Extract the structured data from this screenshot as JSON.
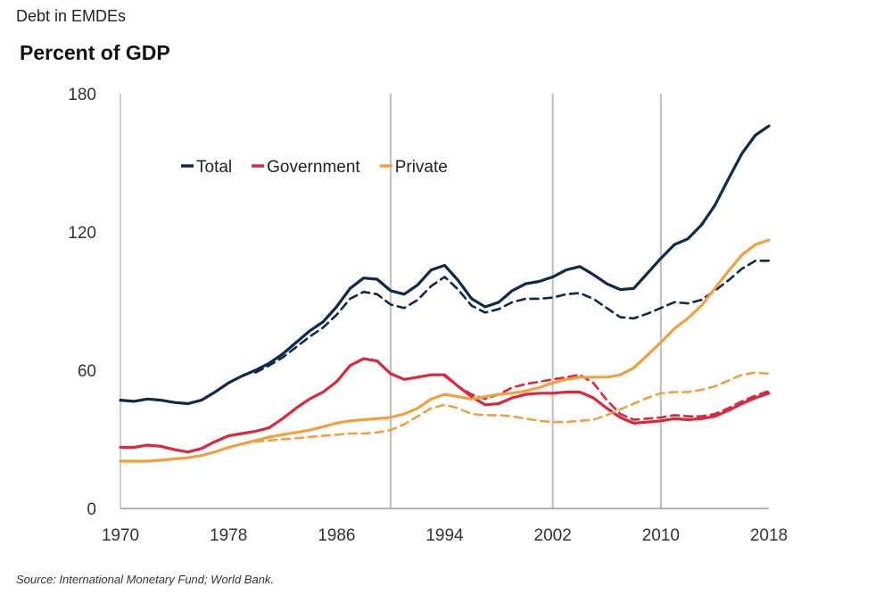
{
  "header": {
    "supertitle": "Debt in EMDEs",
    "title": "Percent of GDP"
  },
  "footer": {
    "source": "Source: International Monetary Fund; World Bank."
  },
  "chart_data": {
    "type": "line",
    "xlim": [
      1970,
      2018
    ],
    "ylim": [
      0,
      180
    ],
    "x_ticks": [
      1970,
      1978,
      1986,
      1994,
      2002,
      2010,
      2018
    ],
    "y_ticks": [
      0,
      60,
      120,
      180
    ],
    "vertical_reference_lines": [
      1990,
      2002,
      2010
    ],
    "legend_placement": "top-left",
    "series": [
      {
        "name": "Total",
        "color": "#0d2a4c",
        "dash": false,
        "points": [
          [
            1970,
            47
          ],
          [
            1971,
            46.5
          ],
          [
            1972,
            47.5
          ],
          [
            1973,
            47
          ],
          [
            1974,
            46
          ],
          [
            1975,
            45.5
          ],
          [
            1976,
            47
          ],
          [
            1977,
            50.5
          ],
          [
            1978,
            54.5
          ],
          [
            1979,
            57.5
          ],
          [
            1980,
            60
          ],
          [
            1981,
            63
          ],
          [
            1982,
            67
          ],
          [
            1983,
            72
          ],
          [
            1984,
            77
          ],
          [
            1985,
            81
          ],
          [
            1986,
            87.5
          ],
          [
            1987,
            95.5
          ],
          [
            1988,
            100
          ],
          [
            1989,
            99.5
          ],
          [
            1990,
            94.5
          ],
          [
            1991,
            93
          ],
          [
            1992,
            97
          ],
          [
            1993,
            103.5
          ],
          [
            1994,
            105.5
          ],
          [
            1995,
            99
          ],
          [
            1996,
            91
          ],
          [
            1997,
            87.5
          ],
          [
            1998,
            89.5
          ],
          [
            1999,
            94.5
          ],
          [
            2000,
            97.5
          ],
          [
            2001,
            98.5
          ],
          [
            2002,
            100.5
          ],
          [
            2003,
            103.5
          ],
          [
            2004,
            105
          ],
          [
            2005,
            101.5
          ],
          [
            2006,
            97.5
          ],
          [
            2007,
            95
          ],
          [
            2008,
            95.5
          ],
          [
            2009,
            102
          ],
          [
            2010,
            108.5
          ],
          [
            2011,
            114.5
          ],
          [
            2012,
            117
          ],
          [
            2013,
            123
          ],
          [
            2014,
            131.5
          ],
          [
            2015,
            143
          ],
          [
            2016,
            154
          ],
          [
            2017,
            162
          ],
          [
            2018,
            166
          ]
        ]
      },
      {
        "name": "",
        "color": "#0d2a4c",
        "dash": true,
        "points": [
          [
            1980,
            59
          ],
          [
            1981,
            62
          ],
          [
            1982,
            65.5
          ],
          [
            1983,
            70
          ],
          [
            1984,
            74.5
          ],
          [
            1985,
            78.5
          ],
          [
            1986,
            84
          ],
          [
            1987,
            91
          ],
          [
            1988,
            94
          ],
          [
            1989,
            93
          ],
          [
            1990,
            88.5
          ],
          [
            1991,
            87
          ],
          [
            1992,
            90.5
          ],
          [
            1993,
            96.5
          ],
          [
            1994,
            100.5
          ],
          [
            1995,
            95
          ],
          [
            1996,
            88
          ],
          [
            1997,
            85
          ],
          [
            1998,
            86.5
          ],
          [
            1999,
            89.5
          ],
          [
            2000,
            91
          ],
          [
            2001,
            91
          ],
          [
            2002,
            91.5
          ],
          [
            2003,
            93
          ],
          [
            2004,
            93.5
          ],
          [
            2005,
            91
          ],
          [
            2006,
            87
          ],
          [
            2007,
            83
          ],
          [
            2008,
            82.5
          ],
          [
            2009,
            84.5
          ],
          [
            2010,
            87
          ],
          [
            2011,
            89.5
          ],
          [
            2012,
            89
          ],
          [
            2013,
            90.5
          ],
          [
            2014,
            94.5
          ],
          [
            2015,
            99
          ],
          [
            2016,
            104
          ],
          [
            2017,
            107.5
          ],
          [
            2018,
            107.5
          ]
        ]
      },
      {
        "name": "Government",
        "color": "#d8293f",
        "dash": false,
        "points": [
          [
            1970,
            26.5
          ],
          [
            1971,
            26.5
          ],
          [
            1972,
            27.5
          ],
          [
            1973,
            27
          ],
          [
            1974,
            25.5
          ],
          [
            1975,
            24.5
          ],
          [
            1976,
            26
          ],
          [
            1977,
            29
          ],
          [
            1978,
            31.5
          ],
          [
            1979,
            32.5
          ],
          [
            1980,
            33.5
          ],
          [
            1981,
            35
          ],
          [
            1982,
            39
          ],
          [
            1983,
            43.5
          ],
          [
            1984,
            47.5
          ],
          [
            1985,
            50.5
          ],
          [
            1986,
            55
          ],
          [
            1987,
            62
          ],
          [
            1988,
            65
          ],
          [
            1989,
            64
          ],
          [
            1990,
            58.5
          ],
          [
            1991,
            56
          ],
          [
            1992,
            57
          ],
          [
            1993,
            58
          ],
          [
            1994,
            58
          ],
          [
            1995,
            53
          ],
          [
            1996,
            48.5
          ],
          [
            1997,
            45
          ],
          [
            1998,
            45.5
          ],
          [
            1999,
            48
          ],
          [
            2000,
            49.5
          ],
          [
            2001,
            50
          ],
          [
            2002,
            50
          ],
          [
            2003,
            50.5
          ],
          [
            2004,
            50.5
          ],
          [
            2005,
            48
          ],
          [
            2006,
            43.5
          ],
          [
            2007,
            39.5
          ],
          [
            2008,
            37
          ],
          [
            2009,
            37.5
          ],
          [
            2010,
            38
          ],
          [
            2011,
            39
          ],
          [
            2012,
            38.5
          ],
          [
            2013,
            39
          ],
          [
            2014,
            40
          ],
          [
            2015,
            42.5
          ],
          [
            2016,
            45.5
          ],
          [
            2017,
            48
          ],
          [
            2018,
            50
          ]
        ]
      },
      {
        "name": "",
        "color": "#d8293f",
        "dash": true,
        "points": [
          [
            1994,
            57.5
          ],
          [
            1995,
            53
          ],
          [
            1996,
            49.5
          ],
          [
            1997,
            47.5
          ],
          [
            1998,
            49.5
          ],
          [
            1999,
            52.5
          ],
          [
            2000,
            54
          ],
          [
            2001,
            55
          ],
          [
            2002,
            56
          ],
          [
            2003,
            57
          ],
          [
            2004,
            58
          ],
          [
            2005,
            54.5
          ],
          [
            2006,
            47
          ],
          [
            2007,
            41
          ],
          [
            2008,
            38.5
          ],
          [
            2009,
            39
          ],
          [
            2010,
            39.5
          ],
          [
            2011,
            40.5
          ],
          [
            2012,
            40
          ],
          [
            2013,
            40
          ],
          [
            2014,
            41
          ],
          [
            2015,
            43.5
          ],
          [
            2016,
            46.5
          ],
          [
            2017,
            49
          ],
          [
            2018,
            51
          ]
        ]
      },
      {
        "name": "Private",
        "color": "#f0a040",
        "dash": false,
        "points": [
          [
            1970,
            20.5
          ],
          [
            1971,
            20.5
          ],
          [
            1972,
            20.5
          ],
          [
            1973,
            21
          ],
          [
            1974,
            21.5
          ],
          [
            1975,
            22
          ],
          [
            1976,
            23
          ],
          [
            1977,
            24.5
          ],
          [
            1978,
            26.5
          ],
          [
            1979,
            28
          ],
          [
            1980,
            29.5
          ],
          [
            1981,
            31
          ],
          [
            1982,
            32
          ],
          [
            1983,
            33
          ],
          [
            1984,
            34
          ],
          [
            1985,
            35.5
          ],
          [
            1986,
            37
          ],
          [
            1987,
            38
          ],
          [
            1988,
            38.5
          ],
          [
            1989,
            39
          ],
          [
            1990,
            39.5
          ],
          [
            1991,
            41
          ],
          [
            1992,
            43.5
          ],
          [
            1993,
            47.5
          ],
          [
            1994,
            49.5
          ],
          [
            1995,
            48.5
          ],
          [
            1996,
            47.5
          ],
          [
            1997,
            48.5
          ],
          [
            1998,
            49.5
          ],
          [
            1999,
            50
          ],
          [
            2000,
            51
          ],
          [
            2001,
            52.5
          ],
          [
            2002,
            54.5
          ],
          [
            2003,
            56
          ],
          [
            2004,
            57
          ],
          [
            2005,
            57
          ],
          [
            2006,
            57
          ],
          [
            2007,
            58
          ],
          [
            2008,
            61
          ],
          [
            2009,
            66.5
          ],
          [
            2010,
            72
          ],
          [
            2011,
            78
          ],
          [
            2012,
            82.5
          ],
          [
            2013,
            88
          ],
          [
            2014,
            95.5
          ],
          [
            2015,
            103
          ],
          [
            2016,
            110
          ],
          [
            2017,
            114.5
          ],
          [
            2018,
            116.5
          ]
        ]
      },
      {
        "name": "",
        "color": "#f0a040",
        "dash": true,
        "points": [
          [
            1979,
            28
          ],
          [
            1980,
            29
          ],
          [
            1981,
            29.5
          ],
          [
            1982,
            30
          ],
          [
            1983,
            30.5
          ],
          [
            1984,
            31
          ],
          [
            1985,
            31.5
          ],
          [
            1986,
            32
          ],
          [
            1987,
            32.5
          ],
          [
            1988,
            32.5
          ],
          [
            1989,
            33
          ],
          [
            1990,
            34
          ],
          [
            1991,
            36.5
          ],
          [
            1992,
            40
          ],
          [
            1993,
            43.5
          ],
          [
            1994,
            45
          ],
          [
            1995,
            43.5
          ],
          [
            1996,
            41
          ],
          [
            1997,
            40.5
          ],
          [
            1998,
            40.5
          ],
          [
            1999,
            40
          ],
          [
            2000,
            39
          ],
          [
            2001,
            38
          ],
          [
            2002,
            37.5
          ],
          [
            2003,
            37.5
          ],
          [
            2004,
            38
          ],
          [
            2005,
            38.5
          ],
          [
            2006,
            40.5
          ],
          [
            2007,
            43
          ],
          [
            2008,
            45.5
          ],
          [
            2009,
            48
          ],
          [
            2010,
            50
          ],
          [
            2011,
            50.5
          ],
          [
            2012,
            50.5
          ],
          [
            2013,
            51.5
          ],
          [
            2014,
            53
          ],
          [
            2015,
            55.5
          ],
          [
            2016,
            58
          ],
          [
            2017,
            59
          ],
          [
            2018,
            58.5
          ]
        ]
      }
    ]
  }
}
